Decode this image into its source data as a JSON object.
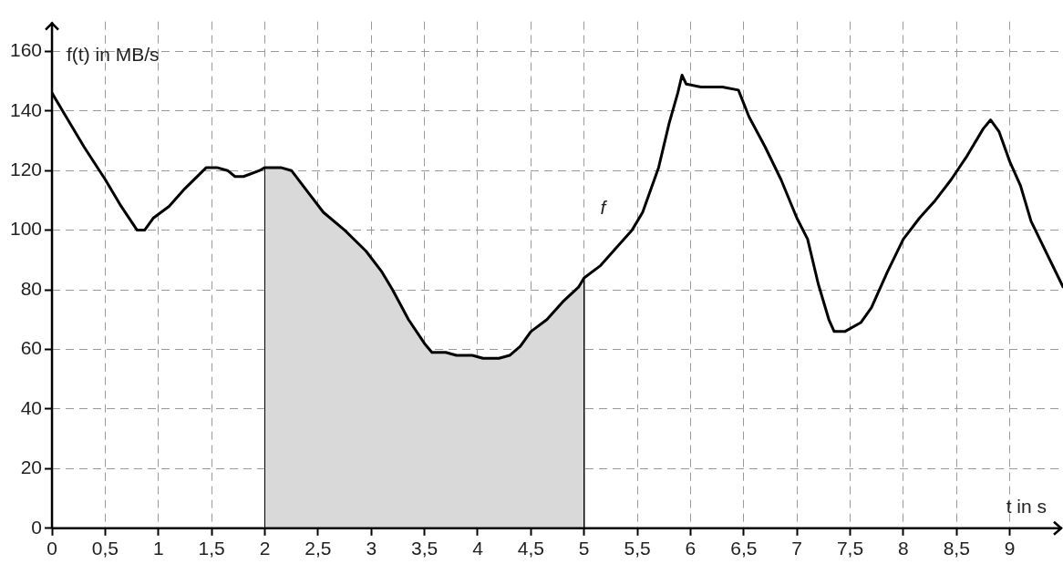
{
  "chart_data": {
    "type": "line",
    "xlabel": "t in s",
    "ylabel": "f(t) in MB/s",
    "xlim": [
      0,
      9.5
    ],
    "ylim": [
      0,
      170
    ],
    "xticks": [
      0,
      {
        "value": 0.5,
        "label": "0,5"
      },
      1,
      {
        "value": 1.5,
        "label": "1,5"
      },
      2,
      {
        "value": 2.5,
        "label": "2,5"
      },
      3,
      {
        "value": 3.5,
        "label": "3,5"
      },
      4,
      {
        "value": 4.5,
        "label": "4,5"
      },
      5,
      {
        "value": 5.5,
        "label": "5,5"
      },
      6,
      {
        "value": 6.5,
        "label": "6,5"
      },
      7,
      {
        "value": 7.5,
        "label": "7,5"
      },
      8,
      {
        "value": 8.5,
        "label": "8,5"
      },
      9
    ],
    "yticks": [
      0,
      20,
      40,
      60,
      80,
      100,
      120,
      140,
      160
    ],
    "grid": true,
    "marker": "none",
    "line_style": "solid",
    "annotations": [
      "f"
    ],
    "series": [
      {
        "color": "#000000",
        "x": [
          0,
          0.1,
          0.3,
          0.5,
          0.65,
          0.8,
          0.87,
          0.95,
          1.1,
          1.25,
          1.45,
          1.55,
          1.65,
          1.72,
          1.8,
          1.95,
          2,
          2.15,
          2.25,
          2.4,
          2.55,
          2.75,
          2.95,
          3.1,
          3.2,
          3.35,
          3.5,
          3.57,
          3.7,
          3.8,
          3.95,
          4.05,
          4.2,
          4.3,
          4.4,
          4.5,
          4.65,
          4.8,
          4.95,
          5,
          5.15,
          5.3,
          5.45,
          5.55,
          5.7,
          5.8,
          5.88,
          5.92,
          5.96,
          6.1,
          6.3,
          6.45,
          6.55,
          6.7,
          6.85,
          7,
          7.1,
          7.2,
          7.3,
          7.35,
          7.45,
          7.6,
          7.7,
          7.85,
          8,
          8.15,
          8.3,
          8.45,
          8.6,
          8.75,
          8.82,
          8.9,
          9,
          9.1,
          9.2,
          9.35,
          9.5
        ],
        "values": [
          146,
          140,
          128,
          117,
          108,
          100,
          100,
          104,
          108,
          114,
          121,
          121,
          120,
          118,
          118,
          120,
          121,
          121,
          120,
          113,
          106,
          100,
          93,
          86,
          80,
          70,
          62,
          59,
          59,
          58,
          58,
          57,
          57,
          58,
          61,
          66,
          70,
          76,
          81,
          84,
          88,
          94,
          100,
          106,
          121,
          136,
          146,
          152,
          149,
          148,
          148,
          147,
          138,
          128,
          117,
          104,
          97,
          82,
          70,
          66,
          66,
          69,
          74,
          86,
          97,
          104,
          110,
          117,
          125,
          134,
          137,
          133,
          123,
          115,
          103,
          92,
          81
        ]
      },
      {
        "type": "area",
        "color": "#d9d9d9",
        "x": [
          2,
          2,
          2.15,
          2.25,
          2.4,
          2.55,
          2.75,
          2.95,
          3.1,
          3.2,
          3.35,
          3.5,
          3.57,
          3.7,
          3.8,
          3.95,
          4.05,
          4.2,
          4.3,
          4.4,
          4.5,
          4.65,
          4.8,
          4.95,
          5,
          5
        ],
        "values": [
          0,
          121,
          121,
          120,
          113,
          106,
          100,
          93,
          86,
          80,
          70,
          62,
          59,
          59,
          58,
          58,
          57,
          57,
          58,
          61,
          66,
          70,
          76,
          81,
          84,
          0
        ]
      }
    ]
  }
}
